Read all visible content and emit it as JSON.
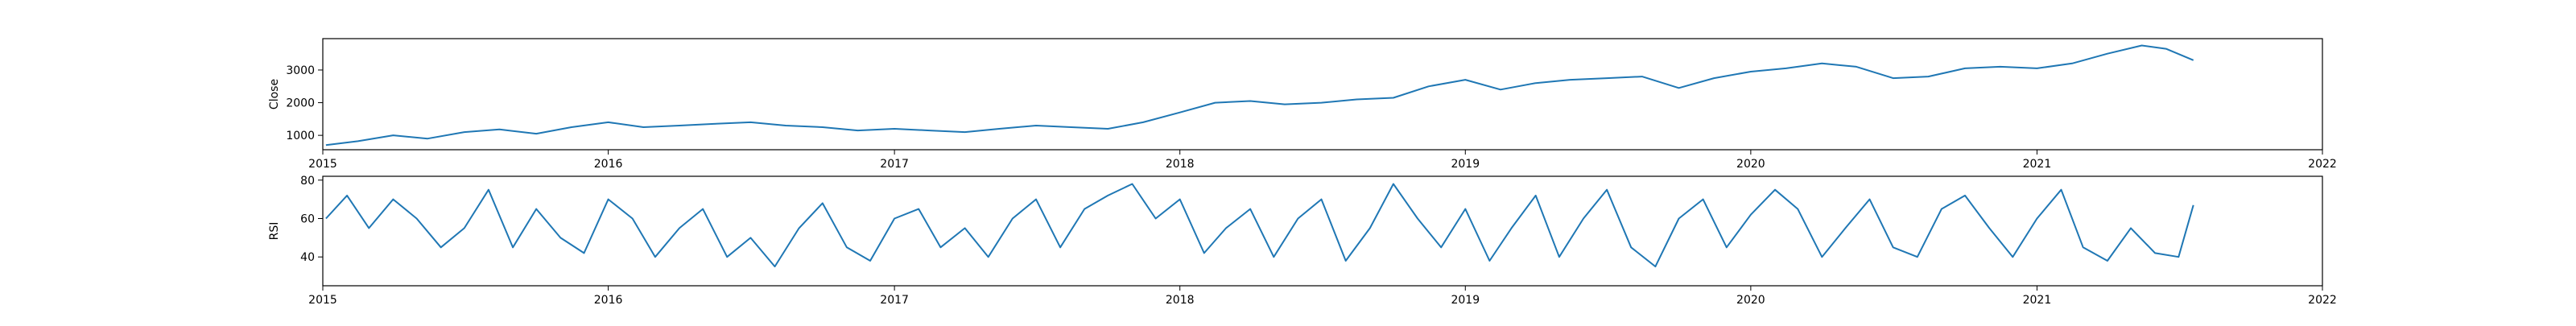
{
  "chart_data": [
    {
      "type": "line",
      "title": "",
      "xlabel": "",
      "ylabel": "Close",
      "xlim": [
        "2015-01-01",
        "2022-01-01"
      ],
      "ylim": [
        560,
        3960
      ],
      "x_ticks": [
        "2015",
        "2016",
        "2017",
        "2018",
        "2019",
        "2020",
        "2021",
        "2022"
      ],
      "y_ticks": [
        1000,
        2000,
        3000
      ],
      "grid": false,
      "legend": "none",
      "series_color": "#1f77b4",
      "series": [
        {
          "x": [
            "2015-01-05",
            "2015-02-15",
            "2015-04-01",
            "2015-05-15",
            "2015-07-01",
            "2015-08-15",
            "2015-10-01",
            "2015-11-15",
            "2016-01-01",
            "2016-02-15",
            "2016-04-01",
            "2016-05-15",
            "2016-07-01",
            "2016-08-15",
            "2016-10-01",
            "2016-11-15",
            "2017-01-01",
            "2017-02-15",
            "2017-04-01",
            "2017-05-15",
            "2017-07-01",
            "2017-08-15",
            "2017-10-01",
            "2017-11-15",
            "2018-01-01",
            "2018-02-15",
            "2018-04-01",
            "2018-05-15",
            "2018-07-01",
            "2018-08-15",
            "2018-10-01",
            "2018-11-15",
            "2019-01-01",
            "2019-02-15",
            "2019-04-01",
            "2019-05-15",
            "2019-07-01",
            "2019-08-15",
            "2019-10-01",
            "2019-11-15",
            "2020-01-01",
            "2020-02-15",
            "2020-04-01",
            "2020-05-15",
            "2020-07-01",
            "2020-08-15",
            "2020-10-01",
            "2020-11-15",
            "2021-01-01",
            "2021-02-15",
            "2021-04-01",
            "2021-05-15",
            "2021-06-15",
            "2021-07-20"
          ],
          "values": [
            700,
            820,
            1000,
            900,
            1100,
            1180,
            1050,
            1250,
            1400,
            1250,
            1300,
            1350,
            1400,
            1300,
            1250,
            1150,
            1200,
            1150,
            1100,
            1200,
            1300,
            1250,
            1200,
            1400,
            1700,
            2000,
            2050,
            1950,
            2000,
            2100,
            2150,
            2500,
            2700,
            2400,
            2600,
            2700,
            2750,
            2800,
            2450,
            2750,
            2950,
            3050,
            3200,
            3100,
            2750,
            2800,
            3050,
            3100,
            3050,
            3200,
            3500,
            3750,
            3650,
            3300
          ]
        }
      ]
    },
    {
      "type": "line",
      "title": "",
      "xlabel": "",
      "ylabel": "RSI",
      "xlim": [
        "2015-01-01",
        "2022-01-01"
      ],
      "ylim": [
        25,
        82
      ],
      "x_ticks": [
        "2015",
        "2016",
        "2017",
        "2018",
        "2019",
        "2020",
        "2021",
        "2022"
      ],
      "y_ticks": [
        40,
        60,
        80
      ],
      "grid": false,
      "legend": "none",
      "series_color": "#1f77b4",
      "series": [
        {
          "x": [
            "2015-01-05",
            "2015-02-01",
            "2015-03-01",
            "2015-04-01",
            "2015-05-01",
            "2015-06-01",
            "2015-07-01",
            "2015-08-01",
            "2015-09-01",
            "2015-10-01",
            "2015-11-01",
            "2015-12-01",
            "2016-01-01",
            "2016-02-01",
            "2016-03-01",
            "2016-04-01",
            "2016-05-01",
            "2016-06-01",
            "2016-07-01",
            "2016-08-01",
            "2016-09-01",
            "2016-10-01",
            "2016-11-01",
            "2016-12-01",
            "2017-01-01",
            "2017-02-01",
            "2017-03-01",
            "2017-04-01",
            "2017-05-01",
            "2017-06-01",
            "2017-07-01",
            "2017-08-01",
            "2017-09-01",
            "2017-10-01",
            "2017-11-01",
            "2017-12-01",
            "2018-01-01",
            "2018-02-01",
            "2018-03-01",
            "2018-04-01",
            "2018-05-01",
            "2018-06-01",
            "2018-07-01",
            "2018-08-01",
            "2018-09-01",
            "2018-10-01",
            "2018-11-01",
            "2018-12-01",
            "2019-01-01",
            "2019-02-01",
            "2019-03-01",
            "2019-04-01",
            "2019-05-01",
            "2019-06-01",
            "2019-07-01",
            "2019-08-01",
            "2019-09-01",
            "2019-10-01",
            "2019-11-01",
            "2019-12-01",
            "2020-01-01",
            "2020-02-01",
            "2020-03-01",
            "2020-04-01",
            "2020-05-01",
            "2020-06-01",
            "2020-07-01",
            "2020-08-01",
            "2020-09-01",
            "2020-10-01",
            "2020-11-01",
            "2020-12-01",
            "2021-01-01",
            "2021-02-01",
            "2021-03-01",
            "2021-04-01",
            "2021-05-01",
            "2021-06-01",
            "2021-07-01",
            "2021-07-20"
          ],
          "values": [
            60,
            72,
            55,
            70,
            60,
            45,
            55,
            75,
            45,
            65,
            50,
            42,
            70,
            60,
            40,
            55,
            65,
            40,
            50,
            35,
            55,
            68,
            45,
            38,
            60,
            65,
            45,
            55,
            40,
            60,
            70,
            45,
            65,
            72,
            78,
            60,
            70,
            42,
            55,
            65,
            40,
            60,
            70,
            38,
            55,
            78,
            60,
            45,
            65,
            38,
            55,
            72,
            40,
            60,
            75,
            45,
            35,
            60,
            70,
            45,
            62,
            75,
            65,
            40,
            55,
            70,
            45,
            40,
            65,
            72,
            55,
            40,
            60,
            75,
            45,
            38,
            55,
            42,
            40,
            67
          ]
        }
      ]
    }
  ]
}
